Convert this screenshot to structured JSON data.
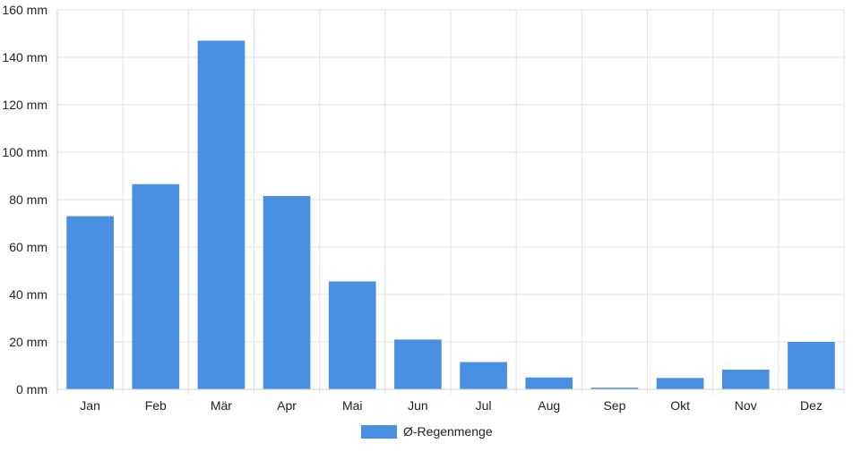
{
  "chart_data": {
    "type": "bar",
    "categories": [
      "Jan",
      "Feb",
      "Mär",
      "Apr",
      "Mai",
      "Jun",
      "Jul",
      "Aug",
      "Sep",
      "Okt",
      "Nov",
      "Dez"
    ],
    "series": [
      {
        "name": "Ø-Regenmenge",
        "values": [
          73,
          86.5,
          147,
          81.5,
          45.5,
          21,
          11.5,
          5,
          0.7,
          4.8,
          8.3,
          20
        ],
        "color": "#4a90e2"
      }
    ],
    "y_ticks": [
      0,
      20,
      40,
      60,
      80,
      100,
      120,
      140,
      160
    ],
    "y_tick_labels": [
      "0 mm",
      "20 mm",
      "40 mm",
      "60 mm",
      "80 mm",
      "100 mm",
      "120 mm",
      "140 mm",
      "160 mm"
    ],
    "ylim": [
      0,
      160
    ],
    "grid": true,
    "legend_position": "bottom-center"
  }
}
